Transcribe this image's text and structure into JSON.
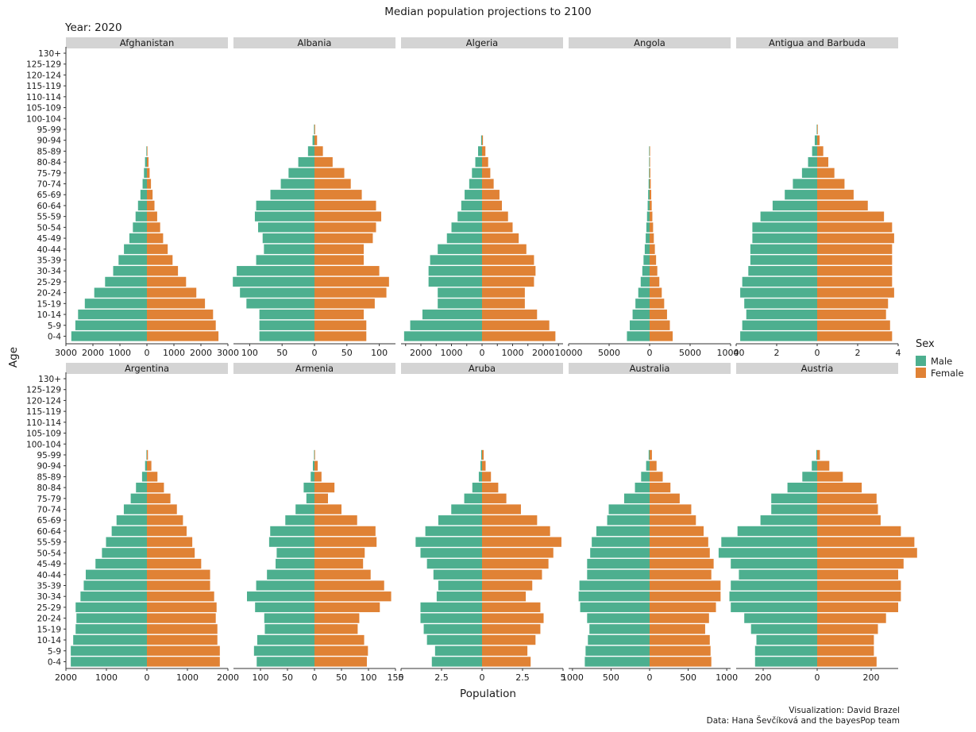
{
  "colors": {
    "male": "#4daf8f",
    "female": "#e08235",
    "strip": "#d4d4d4"
  },
  "chart_data": {
    "type": "bar",
    "title": "Median population projections to 2100",
    "subtitle": "Year: 2020",
    "xlabel": "Population",
    "ylabel": "Age",
    "legend": {
      "title": "Sex",
      "entries": [
        "Male",
        "Female"
      ],
      "position": "right"
    },
    "caption": [
      "Visualization: David Brazel",
      "Data: Hana Ševčíková and the bayesPop team"
    ],
    "age_groups": [
      "0-4",
      "5-9",
      "10-14",
      "15-19",
      "20-24",
      "25-29",
      "30-34",
      "35-39",
      "40-44",
      "45-49",
      "50-54",
      "55-59",
      "60-64",
      "65-69",
      "70-74",
      "75-79",
      "80-84",
      "85-89",
      "90-94",
      "95-99",
      "100-104",
      "105-109",
      "110-114",
      "115-119",
      "120-124",
      "125-129",
      "130+"
    ],
    "panels": [
      {
        "country": "Afghanistan",
        "xlim": [
          -3000,
          3000
        ],
        "ticks": [
          -3000,
          -2000,
          -1000,
          0,
          1000,
          2000,
          3000
        ],
        "tick_labels": [
          "3000",
          "2000",
          "1000",
          "0",
          "1000",
          "2000",
          "3000"
        ],
        "male": [
          2800,
          2650,
          2550,
          2300,
          1950,
          1550,
          1250,
          1050,
          850,
          650,
          520,
          420,
          330,
          240,
          160,
          110,
          70,
          20,
          0,
          0,
          0,
          0,
          0,
          0,
          0,
          0,
          0
        ],
        "female": [
          2650,
          2550,
          2450,
          2150,
          1830,
          1450,
          1150,
          950,
          770,
          600,
          490,
          380,
          280,
          210,
          150,
          100,
          60,
          20,
          0,
          0,
          0,
          0,
          0,
          0,
          0,
          0,
          0
        ]
      },
      {
        "country": "Albania",
        "xlim": [
          -125,
          125
        ],
        "ticks": [
          -100,
          -50,
          0,
          50,
          100
        ],
        "tick_labels": [
          "100",
          "50",
          "0",
          "50",
          "100"
        ],
        "male": [
          85,
          85,
          85,
          105,
          115,
          126,
          120,
          90,
          78,
          80,
          87,
          92,
          90,
          68,
          52,
          40,
          25,
          10,
          3,
          0.8,
          0,
          0,
          0,
          0,
          0,
          0,
          0
        ],
        "female": [
          80,
          80,
          76,
          93,
          111,
          115,
          100,
          76,
          76,
          90,
          95,
          103,
          95,
          73,
          56,
          46,
          28,
          13,
          4,
          1,
          0,
          0,
          0,
          0,
          0,
          0,
          0
        ]
      },
      {
        "country": "Algeria",
        "xlim": [
          -2650,
          2650
        ],
        "ticks": [
          -2500,
          -2000,
          -1500,
          -1000,
          -500,
          0,
          500,
          1000,
          1500,
          2000,
          2500
        ],
        "tick_labels": [
          "",
          "2000",
          "",
          "1000",
          "",
          "0",
          "",
          "1000",
          "",
          "2000",
          ""
        ],
        "male": [
          2550,
          2350,
          1950,
          1450,
          1450,
          1750,
          1750,
          1700,
          1450,
          1150,
          1000,
          800,
          680,
          570,
          420,
          330,
          220,
          130,
          30,
          0,
          0,
          0,
          0,
          0,
          0,
          0,
          0
        ],
        "female": [
          2400,
          2200,
          1800,
          1400,
          1400,
          1700,
          1750,
          1700,
          1450,
          1200,
          1000,
          850,
          650,
          570,
          380,
          270,
          200,
          110,
          30,
          0,
          0,
          0,
          0,
          0,
          0,
          0,
          0
        ]
      },
      {
        "country": "Angola",
        "xlim": [
          -10000,
          10000
        ],
        "ticks": [
          -10000,
          -5000,
          0,
          5000,
          10000
        ],
        "tick_labels": [
          "10000",
          "5000",
          "0",
          "5000",
          "10000"
        ],
        "male": [
          2800,
          2450,
          2100,
          1750,
          1400,
          1100,
          900,
          750,
          600,
          480,
          400,
          320,
          240,
          180,
          120,
          70,
          40,
          20,
          0,
          0,
          0,
          0,
          0,
          0,
          0,
          0,
          0
        ],
        "female": [
          2850,
          2500,
          2150,
          1800,
          1500,
          1200,
          950,
          800,
          650,
          520,
          430,
          340,
          260,
          200,
          140,
          90,
          50,
          20,
          0,
          0,
          0,
          0,
          0,
          0,
          0,
          0,
          0
        ]
      },
      {
        "country": "Antigua and Barbuda",
        "xlim": [
          -4,
          4
        ],
        "ticks": [
          -4,
          -2,
          0,
          2,
          4
        ],
        "tick_labels": [
          "4",
          "2",
          "0",
          "2",
          "4"
        ],
        "male": [
          3.8,
          3.7,
          3.5,
          3.6,
          3.8,
          3.7,
          3.4,
          3.3,
          3.3,
          3.2,
          3.2,
          2.8,
          2.2,
          1.6,
          1.2,
          0.75,
          0.45,
          0.25,
          0.12,
          0.02,
          0,
          0,
          0,
          0,
          0,
          0,
          0
        ],
        "female": [
          3.7,
          3.6,
          3.4,
          3.5,
          3.8,
          3.7,
          3.7,
          3.7,
          3.7,
          3.8,
          3.7,
          3.3,
          2.5,
          1.8,
          1.35,
          0.85,
          0.55,
          0.3,
          0.12,
          0.03,
          0,
          0,
          0,
          0,
          0,
          0,
          0
        ]
      },
      {
        "country": "Argentina",
        "xlim": [
          -2000,
          2000
        ],
        "ticks": [
          -2000,
          -1000,
          0,
          1000,
          2000
        ],
        "tick_labels": [
          "2000",
          "1000",
          "0",
          "1000",
          "2000"
        ],
        "male": [
          1880,
          1880,
          1820,
          1760,
          1740,
          1760,
          1640,
          1560,
          1510,
          1270,
          1110,
          1010,
          870,
          750,
          570,
          400,
          270,
          120,
          45,
          8,
          0,
          0,
          0,
          0,
          0,
          0,
          0
        ],
        "female": [
          1800,
          1800,
          1740,
          1740,
          1700,
          1720,
          1660,
          1560,
          1560,
          1340,
          1180,
          1120,
          980,
          890,
          740,
          580,
          420,
          260,
          110,
          25,
          0,
          0,
          0,
          0,
          0,
          0,
          0
        ]
      },
      {
        "country": "Armenia",
        "xlim": [
          -150,
          150
        ],
        "ticks": [
          -100,
          -50,
          0,
          50,
          100,
          150
        ],
        "tick_labels": [
          "100",
          "50",
          "0",
          "50",
          "100",
          "150"
        ],
        "male": [
          107,
          112,
          106,
          92,
          93,
          110,
          125,
          108,
          88,
          72,
          70,
          84,
          82,
          54,
          35,
          15,
          20,
          7,
          3,
          0.5,
          0,
          0,
          0,
          0,
          0,
          0,
          0
        ],
        "female": [
          97,
          99,
          92,
          80,
          83,
          121,
          142,
          129,
          104,
          90,
          93,
          115,
          113,
          79,
          50,
          25,
          37,
          13,
          6,
          1,
          0,
          0,
          0,
          0,
          0,
          0,
          0
        ]
      },
      {
        "country": "Aruba",
        "xlim": [
          -5,
          5
        ],
        "ticks": [
          -5,
          -2.5,
          0,
          2.5,
          5
        ],
        "tick_labels": [
          "5",
          "2.5",
          "0",
          "2.5",
          "5"
        ],
        "male": [
          3.1,
          2.9,
          3.4,
          3.6,
          3.8,
          3.8,
          2.8,
          2.7,
          3.0,
          3.4,
          3.8,
          4.1,
          3.5,
          2.7,
          1.9,
          1.1,
          0.6,
          0.2,
          0.1,
          0.05,
          0,
          0,
          0,
          0,
          0,
          0,
          0
        ],
        "female": [
          3.0,
          2.8,
          3.3,
          3.6,
          3.8,
          3.6,
          2.7,
          3.1,
          3.7,
          4.1,
          4.4,
          4.9,
          4.2,
          3.4,
          2.4,
          1.5,
          1.0,
          0.55,
          0.22,
          0.1,
          0,
          0,
          0,
          0,
          0,
          0,
          0
        ]
      },
      {
        "country": "Australia",
        "xlim": [
          -1050,
          1050
        ],
        "ticks": [
          -1000,
          -500,
          0,
          500,
          1000
        ],
        "tick_labels": [
          "1000",
          "500",
          "0",
          "500",
          "1000"
        ],
        "male": [
          840,
          830,
          800,
          780,
          810,
          900,
          920,
          910,
          810,
          810,
          770,
          750,
          690,
          550,
          530,
          330,
          190,
          110,
          45,
          12,
          0,
          0,
          0,
          0,
          0,
          0,
          0
        ],
        "female": [
          800,
          790,
          780,
          720,
          770,
          860,
          920,
          920,
          800,
          830,
          780,
          760,
          700,
          600,
          540,
          390,
          270,
          170,
          90,
          30,
          0,
          0,
          0,
          0,
          0,
          0,
          0
        ]
      },
      {
        "country": "Austria",
        "xlim": [
          -300,
          300
        ],
        "ticks": [
          -200,
          0,
          200
        ],
        "tick_labels": [
          "200",
          "0",
          "200"
        ],
        "male": [
          230,
          230,
          225,
          245,
          270,
          320,
          325,
          320,
          290,
          320,
          365,
          355,
          295,
          210,
          170,
          170,
          110,
          55,
          20,
          3,
          0,
          0,
          0,
          0,
          0,
          0,
          0
        ],
        "female": [
          220,
          210,
          210,
          225,
          255,
          300,
          310,
          310,
          300,
          320,
          370,
          360,
          310,
          235,
          225,
          220,
          165,
          95,
          45,
          10,
          0,
          0,
          0,
          0,
          0,
          0,
          0
        ]
      }
    ]
  }
}
